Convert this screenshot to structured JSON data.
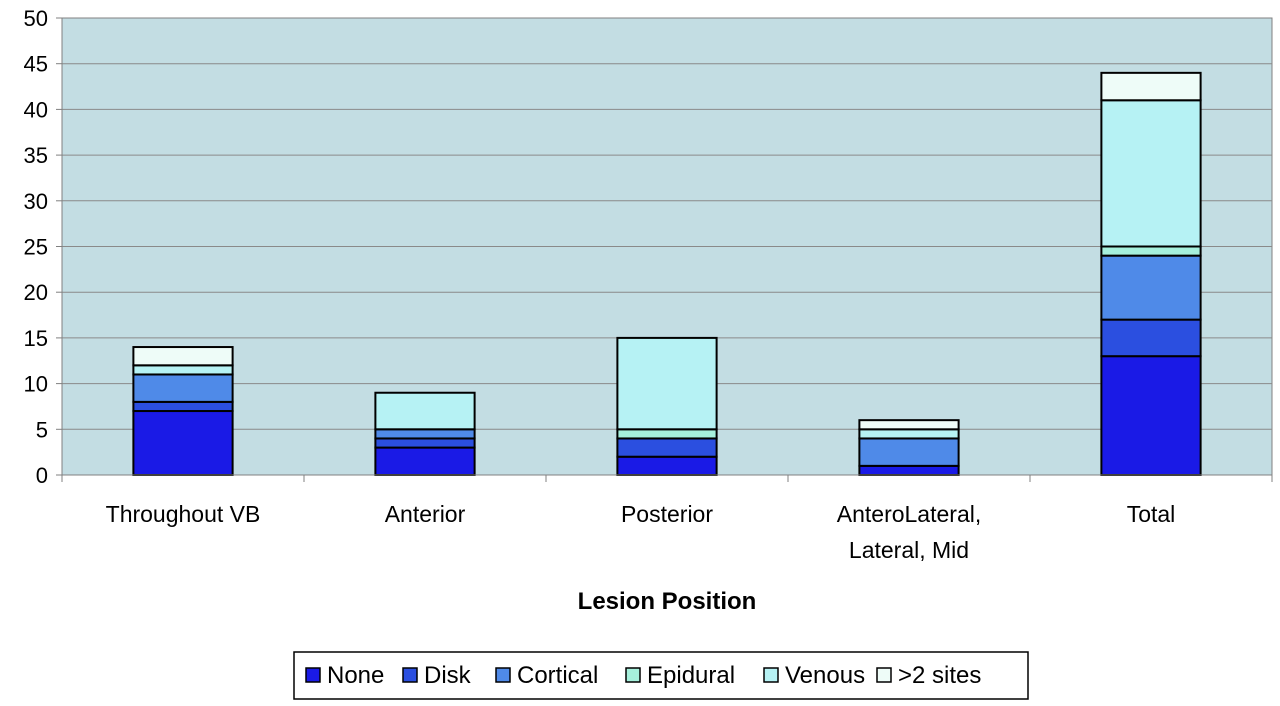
{
  "chart_data": {
    "type": "bar",
    "stacked": true,
    "categories": [
      "Throughout VB",
      "Anterior",
      "Posterior",
      "AnteroLateral,\nLateral, Mid",
      "Total"
    ],
    "series": [
      {
        "name": "None",
        "color": "#1a1ae6",
        "values": [
          7,
          3,
          2,
          1,
          13
        ]
      },
      {
        "name": "Disk",
        "color": "#2b4fe0",
        "values": [
          1,
          1,
          2,
          0,
          4
        ]
      },
      {
        "name": "Cortical",
        "color": "#4f8ae8",
        "values": [
          3,
          1,
          0,
          3,
          7
        ]
      },
      {
        "name": "Epidural",
        "color": "#a6f0dc",
        "values": [
          0,
          0,
          1,
          0,
          1
        ]
      },
      {
        "name": "Venous",
        "color": "#b6f2f4",
        "values": [
          1,
          4,
          10,
          1,
          16
        ]
      },
      {
        "name": ">2 sites",
        "color": "#eefcf8",
        "values": [
          2,
          0,
          0,
          1,
          3
        ]
      }
    ],
    "ylim": [
      0,
      50
    ],
    "yticks": [
      0,
      5,
      10,
      15,
      20,
      25,
      30,
      35,
      40,
      45,
      50
    ],
    "xlabel": "Lesion Position",
    "ylabel": "",
    "grid": true,
    "legend_position": "bottom",
    "plot_background": "#c3dde3"
  }
}
